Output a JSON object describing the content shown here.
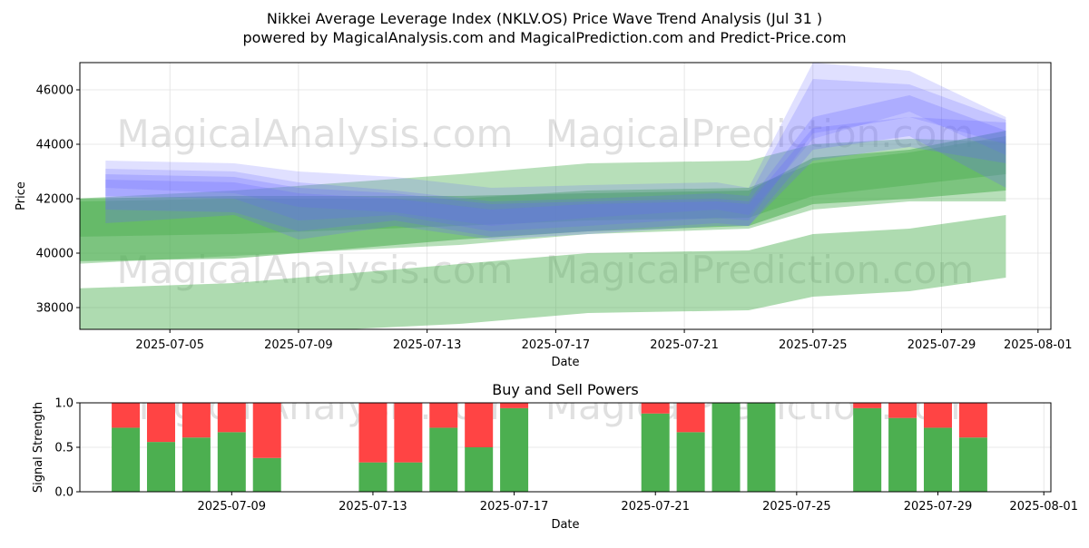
{
  "title_line1": "Nikkei Average Leverage Index (NKLV.OS) Price Wave Trend Analysis (Jul 31 )",
  "title_line2": "powered by MagicalAnalysis.com and MagicalPrediction.com and Predict-Price.com",
  "watermarks": [
    "MagicalAnalysis.com",
    "MagicalPrediction.com"
  ],
  "colors": {
    "green_band": "#4caf50",
    "blue_band": "#6666ff",
    "buy": "#4caf50",
    "sell": "#ff4444",
    "grid": "#e0e0e0"
  },
  "chart_data": [
    {
      "type": "area",
      "name": "price-wave-chart",
      "xlabel": "Date",
      "ylabel": "Price",
      "grid": true,
      "xlim": [
        "2025-07-02",
        "2025-08-01"
      ],
      "ylim": [
        37200,
        47000
      ],
      "x_ticks": [
        "2025-07-05",
        "2025-07-09",
        "2025-07-13",
        "2025-07-17",
        "2025-07-21",
        "2025-07-25",
        "2025-07-29",
        "2025-08-01"
      ],
      "y_ticks": [
        38000,
        40000,
        42000,
        44000,
        46000
      ],
      "green_bands": [
        {
          "x": [
            "2025-07-02",
            "2025-07-07",
            "2025-07-14",
            "2025-07-18",
            "2025-07-23",
            "2025-07-25",
            "2025-07-28",
            "2025-07-31"
          ],
          "upper": [
            42000,
            42100,
            42100,
            42200,
            42300,
            43500,
            43800,
            44500
          ],
          "lower": [
            39700,
            39800,
            40500,
            40800,
            41000,
            41800,
            42000,
            42300
          ],
          "opacity": 0.55
        },
        {
          "x": [
            "2025-07-02",
            "2025-07-07",
            "2025-07-14",
            "2025-07-18",
            "2025-07-23",
            "2025-07-25",
            "2025-07-28",
            "2025-07-31"
          ],
          "upper": [
            42000,
            42300,
            42900,
            43300,
            43400,
            44000,
            44200,
            44100
          ],
          "lower": [
            39600,
            39900,
            40300,
            40700,
            40900,
            41600,
            41900,
            41900
          ],
          "opacity": 0.4
        },
        {
          "x": [
            "2025-07-02",
            "2025-07-07",
            "2025-07-14",
            "2025-07-18",
            "2025-07-23",
            "2025-07-25",
            "2025-07-28",
            "2025-07-31"
          ],
          "upper": [
            41900,
            42000,
            42000,
            42300,
            42400,
            43300,
            43700,
            44300
          ],
          "lower": [
            40600,
            40700,
            41000,
            41200,
            41300,
            42100,
            42500,
            42900
          ],
          "opacity": 0.45
        },
        {
          "x": [
            "2025-07-02",
            "2025-07-07",
            "2025-07-14",
            "2025-07-18",
            "2025-07-23",
            "2025-07-25",
            "2025-07-28",
            "2025-07-31"
          ],
          "upper": [
            38700,
            38900,
            39600,
            40000,
            40100,
            40700,
            40900,
            41400
          ],
          "lower": [
            37100,
            37000,
            37400,
            37800,
            37900,
            38400,
            38600,
            39100
          ],
          "opacity": 0.45
        }
      ],
      "blue_bands": [
        {
          "x": [
            "2025-07-03",
            "2025-07-07",
            "2025-07-09",
            "2025-07-12",
            "2025-07-15",
            "2025-07-18",
            "2025-07-22",
            "2025-07-23",
            "2025-07-25",
            "2025-07-28",
            "2025-07-31"
          ],
          "upper": [
            43400,
            43300,
            43000,
            42800,
            42400,
            42500,
            42600,
            42400,
            47000,
            46700,
            45000
          ],
          "lower": [
            42400,
            42200,
            41700,
            41500,
            41000,
            41300,
            41600,
            41400,
            44200,
            45200,
            43600
          ],
          "opacity": 0.2
        },
        {
          "x": [
            "2025-07-03",
            "2025-07-07",
            "2025-07-09",
            "2025-07-12",
            "2025-07-15",
            "2025-07-18",
            "2025-07-22",
            "2025-07-23",
            "2025-07-25",
            "2025-07-28",
            "2025-07-31"
          ],
          "upper": [
            43100,
            43000,
            42600,
            42300,
            41900,
            42000,
            42200,
            42100,
            46400,
            46200,
            44900
          ],
          "lower": [
            42100,
            42000,
            41200,
            41400,
            40800,
            41000,
            41300,
            41200,
            44400,
            45000,
            44000
          ],
          "opacity": 0.22
        },
        {
          "x": [
            "2025-07-03",
            "2025-07-07",
            "2025-07-09",
            "2025-07-12",
            "2025-07-15",
            "2025-07-18",
            "2025-07-22",
            "2025-07-23",
            "2025-07-25",
            "2025-07-28",
            "2025-07-31"
          ],
          "upper": [
            42900,
            42800,
            42400,
            42200,
            41800,
            41900,
            42000,
            41900,
            45000,
            45800,
            44500
          ],
          "lower": [
            41600,
            41500,
            40800,
            41200,
            40600,
            40800,
            41100,
            41000,
            43800,
            44300,
            42400
          ],
          "opacity": 0.25
        },
        {
          "x": [
            "2025-07-03",
            "2025-07-07",
            "2025-07-09",
            "2025-07-12",
            "2025-07-15",
            "2025-07-18",
            "2025-07-22",
            "2025-07-23",
            "2025-07-25",
            "2025-07-28",
            "2025-07-31"
          ],
          "upper": [
            42700,
            42600,
            42200,
            42000,
            41600,
            41800,
            41900,
            41800,
            44600,
            45000,
            44800
          ],
          "lower": [
            41100,
            41400,
            40500,
            41000,
            40500,
            40700,
            41000,
            41000,
            43400,
            43900,
            43300
          ],
          "opacity": 0.25
        }
      ]
    },
    {
      "type": "bar",
      "name": "buy-sell-powers-chart",
      "title": "Buy and Sell Powers",
      "xlabel": "Date",
      "ylabel": "Signal Strength",
      "grid": true,
      "ylim": [
        0,
        1.0
      ],
      "xlim": [
        "2025-07-04",
        "2025-08-01"
      ],
      "x_ticks": [
        "2025-07-09",
        "2025-07-13",
        "2025-07-17",
        "2025-07-21",
        "2025-07-25",
        "2025-07-29",
        "2025-08-01"
      ],
      "y_ticks": [
        0.0,
        0.5,
        1.0
      ],
      "y_tick_labels": [
        "0.0",
        "0.5",
        "1.0"
      ],
      "bars": [
        {
          "date": "2025-07-06",
          "buy": 0.72,
          "sell": 0.28
        },
        {
          "date": "2025-07-07",
          "buy": 0.56,
          "sell": 0.44
        },
        {
          "date": "2025-07-08",
          "buy": 0.61,
          "sell": 0.39
        },
        {
          "date": "2025-07-09",
          "buy": 0.67,
          "sell": 0.33
        },
        {
          "date": "2025-07-10",
          "buy": 0.38,
          "sell": 0.62
        },
        {
          "date": "2025-07-13",
          "buy": 0.33,
          "sell": 0.67
        },
        {
          "date": "2025-07-14",
          "buy": 0.33,
          "sell": 0.67
        },
        {
          "date": "2025-07-15",
          "buy": 0.72,
          "sell": 0.28
        },
        {
          "date": "2025-07-16",
          "buy": 0.5,
          "sell": 0.5
        },
        {
          "date": "2025-07-17",
          "buy": 0.94,
          "sell": 0.06
        },
        {
          "date": "2025-07-21",
          "buy": 0.88,
          "sell": 0.12
        },
        {
          "date": "2025-07-22",
          "buy": 0.67,
          "sell": 0.33
        },
        {
          "date": "2025-07-23",
          "buy": 1.0,
          "sell": 0.0
        },
        {
          "date": "2025-07-24",
          "buy": 1.0,
          "sell": 0.0
        },
        {
          "date": "2025-07-27",
          "buy": 0.94,
          "sell": 0.06
        },
        {
          "date": "2025-07-28",
          "buy": 0.83,
          "sell": 0.17
        },
        {
          "date": "2025-07-29",
          "buy": 0.72,
          "sell": 0.28
        },
        {
          "date": "2025-07-30",
          "buy": 0.61,
          "sell": 0.39
        }
      ]
    }
  ]
}
